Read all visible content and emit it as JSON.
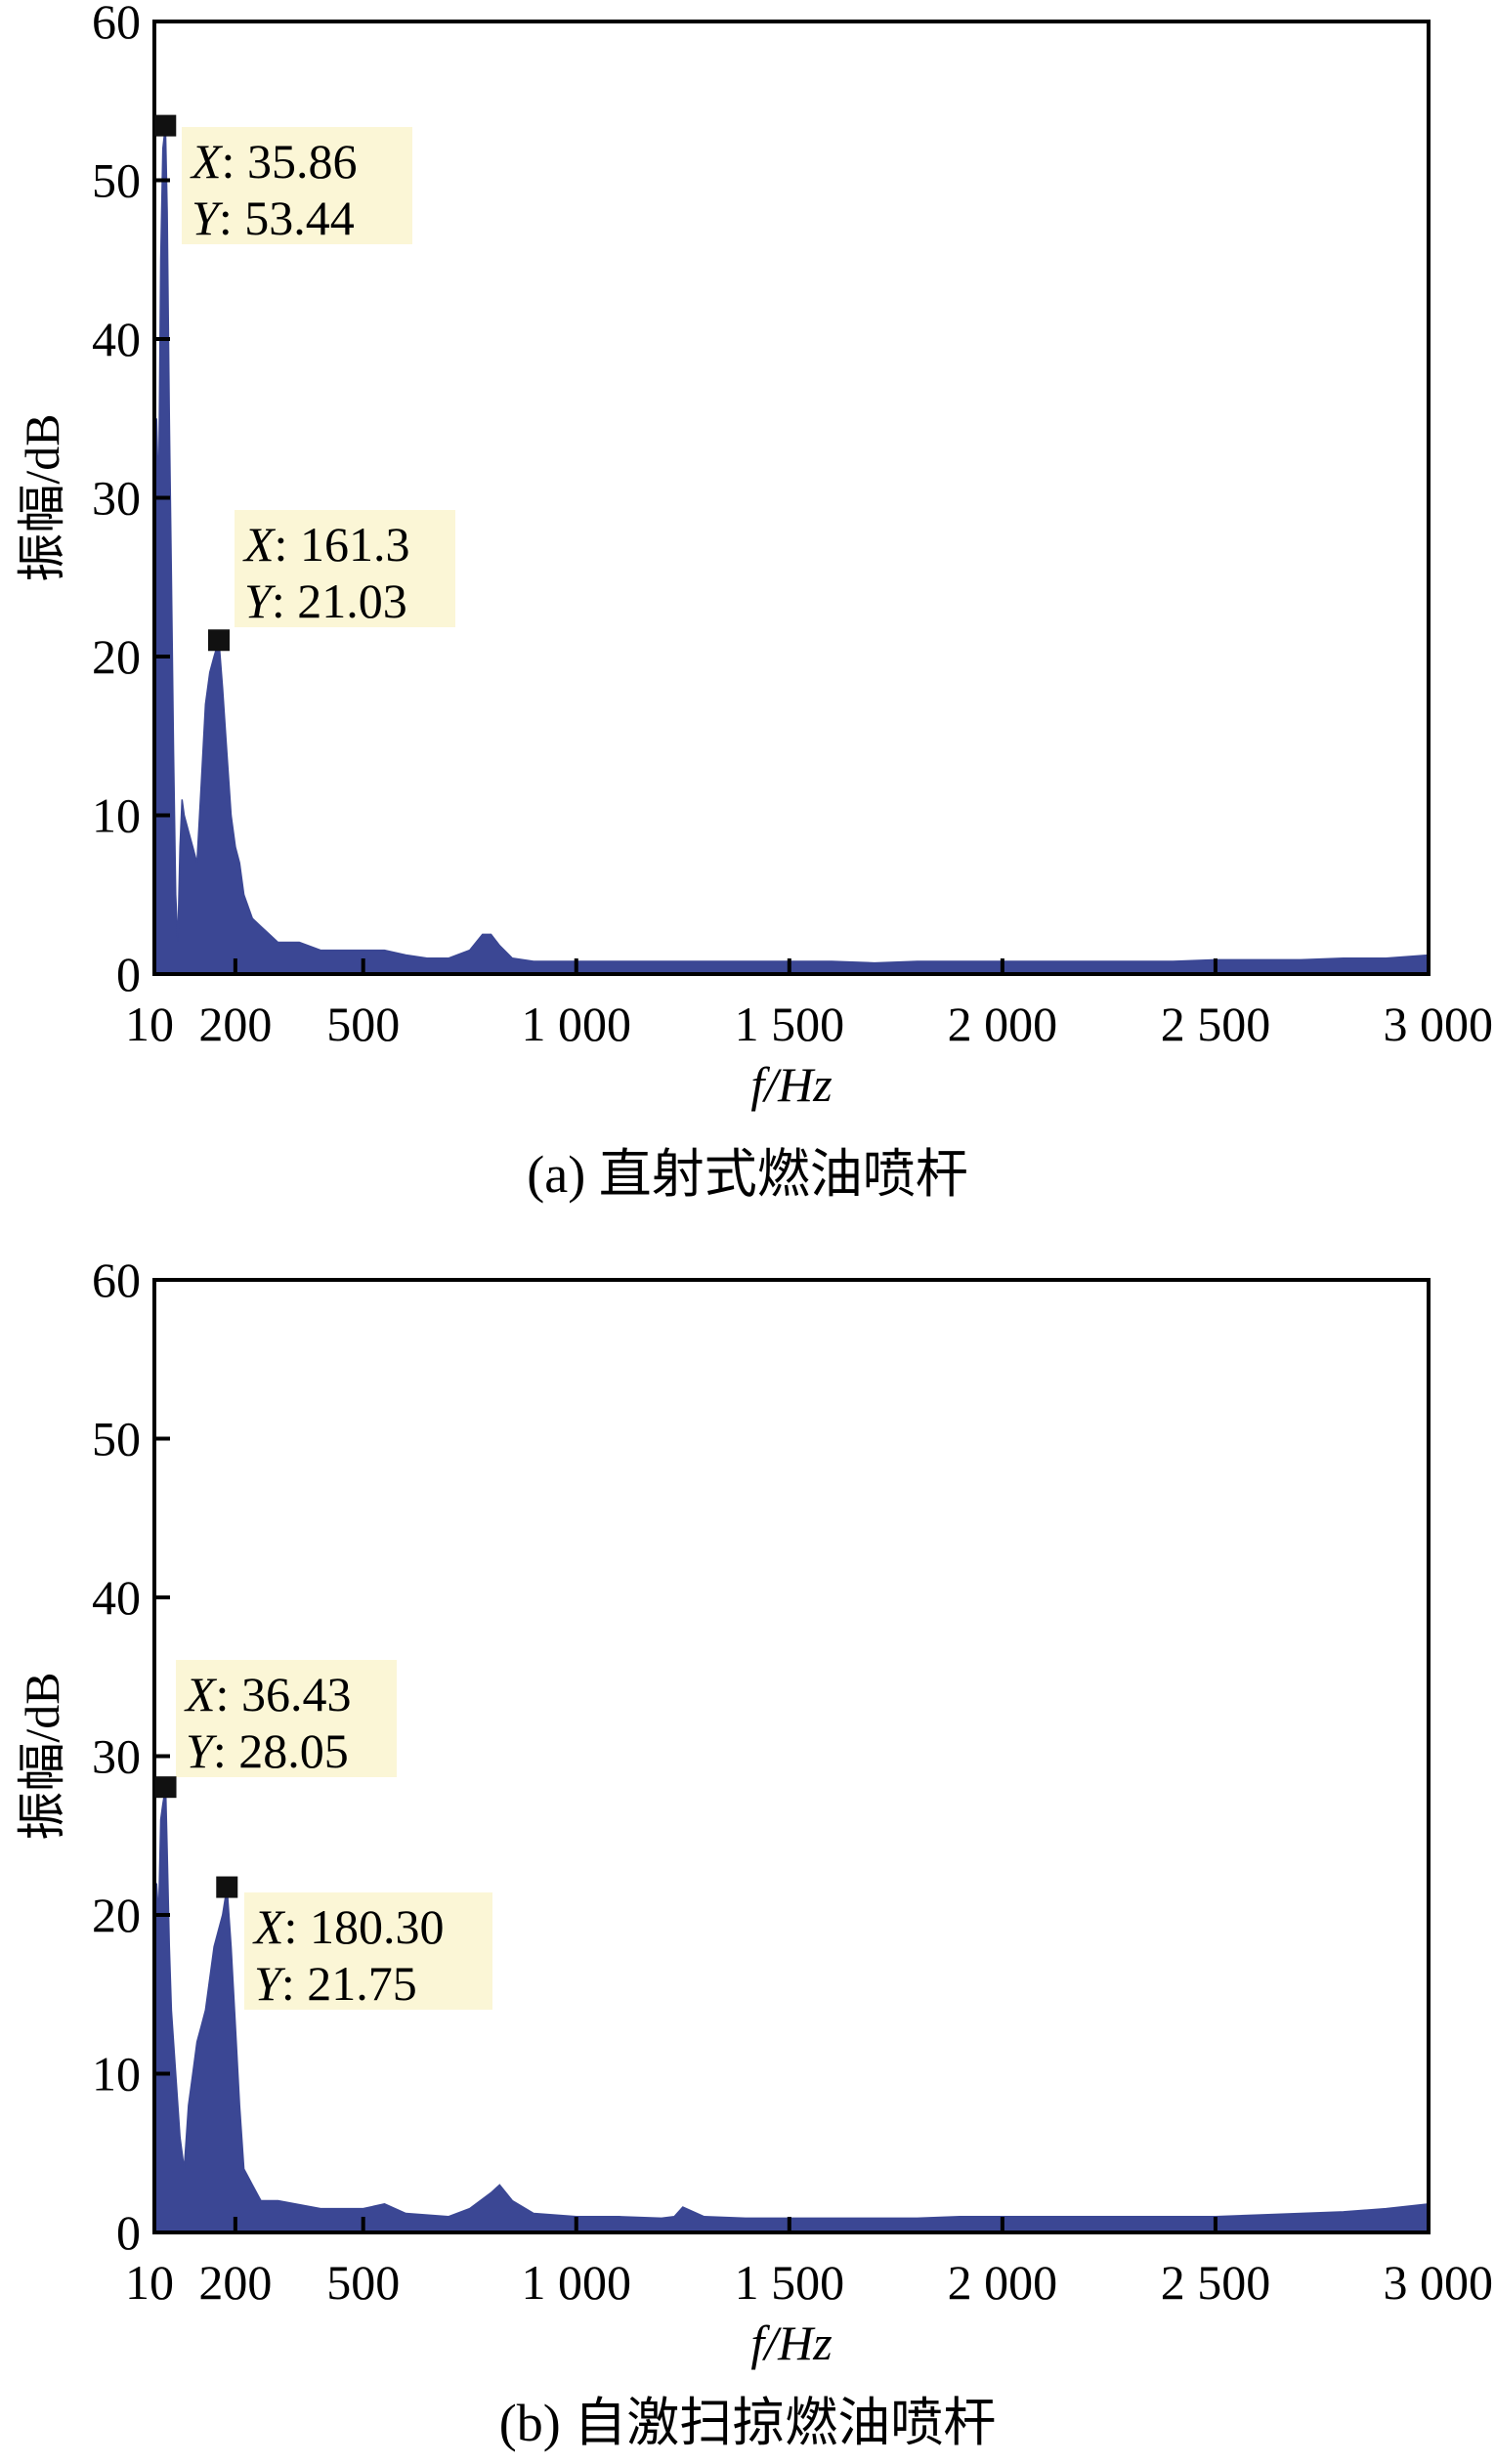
{
  "chart_data": [
    {
      "type": "line",
      "caption": "(a) 直射式燃油喷杆",
      "xlabel": "f/Hz",
      "ylabel": "振幅/dB",
      "xlim": [
        10,
        3000
      ],
      "ylim": [
        0,
        60
      ],
      "x_ticks": [
        10,
        200,
        500,
        1000,
        1500,
        2000,
        2500,
        3000
      ],
      "x_tick_labels": [
        "10",
        "200",
        "500",
        "1 000",
        "1 500",
        "2 000",
        "2 500",
        "3 000"
      ],
      "y_ticks": [
        0,
        10,
        20,
        30,
        40,
        50,
        60
      ],
      "y_tick_labels": [
        "0",
        "10",
        "20",
        "30",
        "40",
        "50",
        "60"
      ],
      "fill_color": "#3b4794",
      "series": [
        {
          "x": [
            10,
            15,
            20,
            25,
            30,
            35.86,
            40,
            45,
            50,
            55,
            60,
            65,
            70,
            75,
            80,
            90,
            100,
            110,
            120,
            130,
            140,
            150,
            161.3,
            170,
            180,
            190,
            200,
            210,
            220,
            240,
            260,
            280,
            300,
            350,
            400,
            450,
            500,
            550,
            600,
            650,
            700,
            750,
            780,
            800,
            820,
            850,
            900,
            1000,
            1100,
            1200,
            1300,
            1400,
            1500,
            1600,
            1700,
            1800,
            1900,
            2000,
            2100,
            2200,
            2300,
            2400,
            2500,
            2600,
            2700,
            2800,
            2900,
            3000
          ],
          "y": [
            26,
            35,
            30,
            45,
            52,
            53.44,
            48,
            35,
            25,
            14,
            5,
            2,
            8,
            11,
            10,
            9,
            8,
            7,
            12,
            17,
            19,
            20,
            21.03,
            18,
            14,
            10,
            8,
            7,
            5,
            3.5,
            3,
            2.5,
            2,
            2,
            1.5,
            1.5,
            1.5,
            1.5,
            1.2,
            1,
            1,
            1.5,
            2.5,
            2.5,
            1.8,
            1,
            0.8,
            0.8,
            0.8,
            0.8,
            0.8,
            0.8,
            0.8,
            0.8,
            0.7,
            0.8,
            0.8,
            0.8,
            0.8,
            0.8,
            0.8,
            0.8,
            0.9,
            0.9,
            0.9,
            1,
            1,
            1.2
          ]
        }
      ],
      "annotations": [
        {
          "x_label": "X",
          "x_value": "35.86",
          "y_label": "Y",
          "y_value": "53.44",
          "x": 35.86,
          "y": 53.44
        },
        {
          "x_label": "X",
          "x_value": "161.3",
          "y_label": "Y",
          "y_value": "21.03",
          "x": 161.3,
          "y": 21.03
        }
      ]
    },
    {
      "type": "line",
      "caption": "(b) 自激扫掠燃油喷杆",
      "xlabel": "f/Hz",
      "ylabel": "振幅/dB",
      "xlim": [
        10,
        3000
      ],
      "ylim": [
        0,
        60
      ],
      "x_ticks": [
        10,
        200,
        500,
        1000,
        1500,
        2000,
        2500,
        3000
      ],
      "x_tick_labels": [
        "10",
        "200",
        "500",
        "1 000",
        "1 500",
        "2 000",
        "2 500",
        "3 000"
      ],
      "y_ticks": [
        0,
        10,
        20,
        30,
        40,
        50,
        60
      ],
      "y_tick_labels": [
        "0",
        "10",
        "20",
        "30",
        "40",
        "50",
        "60"
      ],
      "fill_color": "#3b4794",
      "series": [
        {
          "x": [
            10,
            15,
            20,
            25,
            30,
            36.43,
            40,
            45,
            50,
            60,
            70,
            80,
            90,
            100,
            110,
            120,
            130,
            140,
            150,
            160,
            170,
            180.3,
            190,
            200,
            210,
            220,
            240,
            260,
            300,
            400,
            500,
            550,
            600,
            700,
            750,
            800,
            820,
            850,
            900,
            1000,
            1100,
            1200,
            1230,
            1250,
            1300,
            1400,
            1500,
            1600,
            1700,
            1800,
            1900,
            2000,
            2100,
            2200,
            2300,
            2400,
            2500,
            2600,
            2700,
            2800,
            2900,
            3000
          ],
          "y": [
            15,
            22,
            20,
            26,
            27,
            28.05,
            24,
            18,
            14,
            10,
            6,
            4,
            8,
            10,
            12,
            13,
            14,
            16,
            18,
            19,
            20,
            21.75,
            18,
            13,
            8,
            4,
            3,
            2,
            2,
            1.5,
            1.5,
            1.8,
            1.2,
            1,
            1.5,
            2.5,
            3,
            2,
            1.2,
            1,
            1,
            0.9,
            1,
            1.6,
            1,
            0.9,
            0.9,
            0.9,
            0.9,
            0.9,
            1,
            1,
            1,
            1,
            1,
            1,
            1,
            1.1,
            1.2,
            1.3,
            1.5,
            1.8
          ]
        }
      ],
      "annotations": [
        {
          "x_label": "X",
          "x_value": "36.43",
          "y_label": "Y",
          "y_value": "28.05",
          "x": 36.43,
          "y": 28.05
        },
        {
          "x_label": "X",
          "x_value": "180.30",
          "y_label": "Y",
          "y_value": "21.75",
          "x": 180.3,
          "y": 21.75
        }
      ]
    }
  ]
}
